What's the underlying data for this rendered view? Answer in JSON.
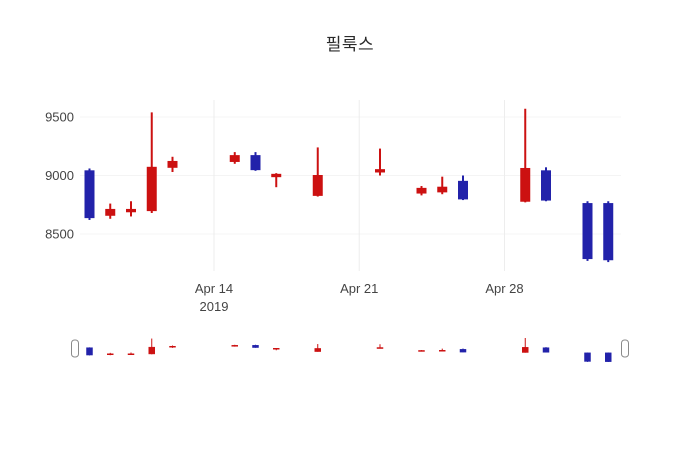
{
  "chart_data": {
    "type": "candlestick",
    "title": "필룩스",
    "xlabel": "",
    "ylabel": "",
    "ylim": [
      8150,
      9650
    ],
    "grid": true,
    "legend": "none",
    "rangeslider": true,
    "y_ticks": [
      9500,
      9000,
      8500
    ],
    "x_ticks": [
      {
        "label": "Apr 14",
        "sublabel": "2019",
        "date": "2019-04-14"
      },
      {
        "label": "Apr 21",
        "sublabel": "",
        "date": "2019-04-21"
      },
      {
        "label": "Apr 28",
        "sublabel": "",
        "date": "2019-04-28"
      }
    ],
    "colors": {
      "increasing": "#cc1111",
      "decreasing": "#2222aa",
      "grid": "#ededed",
      "background": "#ffffff"
    },
    "candles": [
      {
        "date": "2019-04-08",
        "open": 9040,
        "high": 9060,
        "low": 8620,
        "close": 8640
      },
      {
        "date": "2019-04-09",
        "open": 8660,
        "high": 8760,
        "low": 8630,
        "close": 8710
      },
      {
        "date": "2019-04-10",
        "open": 8690,
        "high": 8780,
        "low": 8650,
        "close": 8710
      },
      {
        "date": "2019-04-11",
        "open": 8700,
        "high": 9540,
        "low": 8680,
        "close": 9070
      },
      {
        "date": "2019-04-12",
        "open": 9070,
        "high": 9160,
        "low": 9030,
        "close": 9120
      },
      {
        "date": "2019-04-15",
        "open": 9120,
        "high": 9200,
        "low": 9100,
        "close": 9170
      },
      {
        "date": "2019-04-16",
        "open": 9170,
        "high": 9200,
        "low": 9040,
        "close": 9050
      },
      {
        "date": "2019-04-17",
        "open": 8990,
        "high": 9020,
        "low": 8900,
        "close": 9010
      },
      {
        "date": "2019-04-19",
        "open": 8830,
        "high": 9240,
        "low": 8820,
        "close": 9000
      },
      {
        "date": "2019-04-22",
        "open": 9030,
        "high": 9230,
        "low": 9000,
        "close": 9050
      },
      {
        "date": "2019-04-24",
        "open": 8850,
        "high": 8910,
        "low": 8830,
        "close": 8890
      },
      {
        "date": "2019-04-25",
        "open": 8860,
        "high": 8990,
        "low": 8840,
        "close": 8900
      },
      {
        "date": "2019-04-26",
        "open": 8950,
        "high": 9000,
        "low": 8790,
        "close": 8800
      },
      {
        "date": "2019-04-29",
        "open": 8780,
        "high": 9570,
        "low": 8770,
        "close": 9060
      },
      {
        "date": "2019-04-30",
        "open": 9040,
        "high": 9070,
        "low": 8780,
        "close": 8790
      },
      {
        "date": "2019-05-02",
        "open": 8760,
        "high": 8780,
        "low": 8270,
        "close": 8290
      },
      {
        "date": "2019-05-03",
        "open": 8760,
        "high": 8780,
        "low": 8260,
        "close": 8280
      }
    ]
  }
}
